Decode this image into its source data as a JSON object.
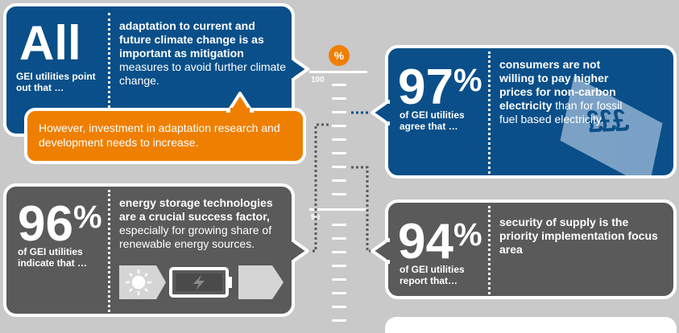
{
  "scale": {
    "percent_symbol": "%",
    "label_100": "100",
    "label_90": "90"
  },
  "panel_all": {
    "big": "All",
    "sub": "GEI utilities point out that …",
    "text_bold": "adaptation to current and future climate change is as important as mitigation",
    "text_normal": "measures to avoid further climate change."
  },
  "orange_note": "However, investment in adaptation research and development needs to increase.",
  "panel_97": {
    "value": "97",
    "percent": "%",
    "sub": "of GEI utilities agree that …",
    "text_bold": "consumers are not willing to pay higher prices for non-carbon electricity",
    "text_normal": "than for fossil fuel based electricity."
  },
  "panel_96": {
    "value": "96",
    "percent": "%",
    "sub": "of GEI utilities indicate that …",
    "text_bold": "energy storage technologies are a crucial success factor,",
    "text_normal": "especially for growing share of renewable energy sources."
  },
  "panel_94": {
    "value": "94",
    "percent": "%",
    "sub": "of GEI utilities report that…",
    "text_bold": "security of supply is the priority implementation focus area"
  },
  "colors": {
    "blue": "#0a4f89",
    "gray": "#5a5a5a",
    "orange": "#ef7f00",
    "background": "#c9c9c9"
  },
  "icons": {
    "money": "pound-banknote-icon",
    "sun": "sun-icon",
    "battery": "battery-charging-icon",
    "moon": "moon-icon"
  }
}
